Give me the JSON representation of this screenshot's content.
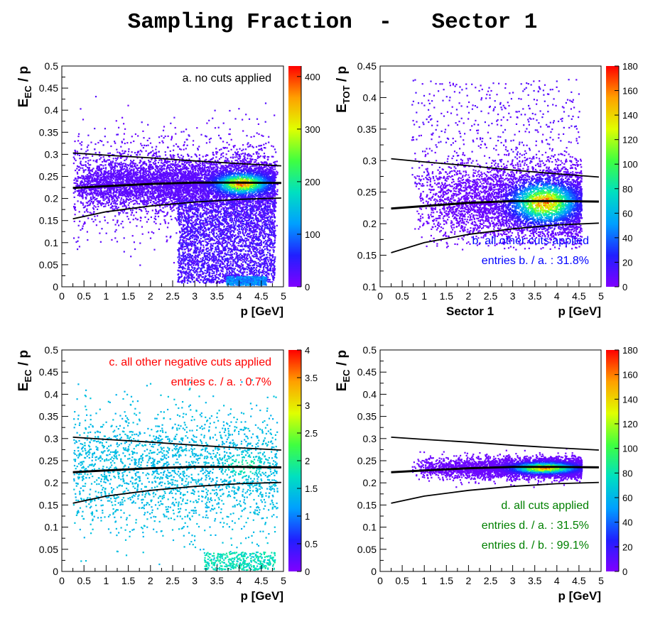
{
  "title": "Sampling Fraction  -   Sector 1",
  "palette_stops": [
    "#8000ff",
    "#2020ff",
    "#00a0ff",
    "#00e0c0",
    "#40ff40",
    "#e0ff00",
    "#ffa000",
    "#ff0000"
  ],
  "line_color": "#000000",
  "chart_data": [
    {
      "type": "heatmap",
      "panel": "a",
      "annotations": [
        {
          "text": "a. no cuts applied",
          "color": "#000000"
        }
      ],
      "ylabel_main": "E",
      "ylabel_sub": "EC",
      "ylabel_tail": " / p",
      "xlabel": "p  [GeV]",
      "xlabel_extra": "",
      "xlim": [
        0,
        5
      ],
      "ylim": [
        0,
        0.5
      ],
      "xticks": [
        "0",
        "0.5",
        "1",
        "1.5",
        "2",
        "2.5",
        "3",
        "3.5",
        "4",
        "4.5",
        "5"
      ],
      "yticks": [
        "0",
        "0.05",
        "0.1",
        "0.15",
        "0.2",
        "0.25",
        "0.3",
        "0.35",
        "0.4",
        "0.45",
        "0.5"
      ],
      "zlim": [
        0,
        420
      ],
      "zticks": [
        "0",
        "100",
        "200",
        "300",
        "400"
      ],
      "zticks_values": [
        0,
        100,
        200,
        300,
        400
      ],
      "peak": {
        "x": 4.05,
        "y": 0.235,
        "z": 420
      },
      "curves": {
        "upper": [
          [
            0.25,
            0.303
          ],
          [
            1,
            0.298
          ],
          [
            2,
            0.292
          ],
          [
            3,
            0.285
          ],
          [
            4,
            0.279
          ],
          [
            4.95,
            0.274
          ]
        ],
        "mean": [
          [
            0.25,
            0.224
          ],
          [
            1,
            0.228
          ],
          [
            2,
            0.233
          ],
          [
            3,
            0.236
          ],
          [
            4,
            0.236
          ],
          [
            4.95,
            0.235
          ]
        ],
        "lower": [
          [
            0.25,
            0.154
          ],
          [
            1,
            0.17
          ],
          [
            2,
            0.183
          ],
          [
            3,
            0.192
          ],
          [
            4,
            0.198
          ],
          [
            4.95,
            0.201
          ]
        ]
      }
    },
    {
      "type": "heatmap",
      "panel": "b",
      "annotations": [
        {
          "text": "b. all other cuts applied",
          "color": "#0000ff"
        },
        {
          "text": "entries b. / a. : 31.8%",
          "color": "#0000ff"
        }
      ],
      "ylabel_main": "E",
      "ylabel_sub": "TOT",
      "ylabel_tail": " / p",
      "xlabel": "p  [GeV]",
      "xlabel_extra": "Sector 1",
      "xlim": [
        0,
        5
      ],
      "ylim": [
        0.1,
        0.45
      ],
      "xticks": [
        "0",
        "0.5",
        "1",
        "1.5",
        "2",
        "2.5",
        "3",
        "3.5",
        "4",
        "4.5",
        "5"
      ],
      "yticks": [
        "0.1",
        "0.15",
        "0.2",
        "0.25",
        "0.3",
        "0.35",
        "0.4",
        "0.45"
      ],
      "zlim": [
        0,
        180
      ],
      "zticks": [
        "0",
        "20",
        "40",
        "60",
        "80",
        "100",
        "120",
        "140",
        "160",
        "180"
      ],
      "zticks_values": [
        0,
        20,
        40,
        60,
        80,
        100,
        120,
        140,
        160,
        180
      ],
      "peak": {
        "x": 3.7,
        "y": 0.235,
        "z": 180
      },
      "curves": {
        "upper": [
          [
            0.25,
            0.303
          ],
          [
            1,
            0.298
          ],
          [
            2,
            0.292
          ],
          [
            3,
            0.285
          ],
          [
            4,
            0.279
          ],
          [
            4.95,
            0.274
          ]
        ],
        "mean": [
          [
            0.25,
            0.224
          ],
          [
            1,
            0.228
          ],
          [
            2,
            0.233
          ],
          [
            3,
            0.236
          ],
          [
            4,
            0.236
          ],
          [
            4.95,
            0.235
          ]
        ],
        "lower": [
          [
            0.25,
            0.154
          ],
          [
            1,
            0.17
          ],
          [
            2,
            0.183
          ],
          [
            3,
            0.192
          ],
          [
            4,
            0.198
          ],
          [
            4.95,
            0.201
          ]
        ]
      }
    },
    {
      "type": "heatmap",
      "panel": "c",
      "annotations": [
        {
          "text": "c. all other negative cuts applied",
          "color": "#ff0000"
        },
        {
          "text": "entries c. / a. : 0.7%",
          "color": "#ff0000"
        }
      ],
      "ylabel_main": "E",
      "ylabel_sub": "EC",
      "ylabel_tail": " / p",
      "xlabel": "p  [GeV]",
      "xlabel_extra": "",
      "xlim": [
        0,
        5
      ],
      "ylim": [
        0,
        0.5
      ],
      "xticks": [
        "0",
        "0.5",
        "1",
        "1.5",
        "2",
        "2.5",
        "3",
        "3.5",
        "4",
        "4.5",
        "5"
      ],
      "yticks": [
        "0",
        "0.05",
        "0.1",
        "0.15",
        "0.2",
        "0.25",
        "0.3",
        "0.35",
        "0.4",
        "0.45",
        "0.5"
      ],
      "zlim": [
        0,
        4
      ],
      "zticks": [
        "0",
        "0.5",
        "1",
        "1.5",
        "2",
        "2.5",
        "3",
        "3.5",
        "4"
      ],
      "zticks_values": [
        0,
        0.5,
        1,
        1.5,
        2,
        2.5,
        3,
        3.5,
        4
      ],
      "peak": {
        "x": 4.1,
        "y": 0.24,
        "z": 2
      },
      "curves": {
        "upper": [
          [
            0.25,
            0.303
          ],
          [
            1,
            0.298
          ],
          [
            2,
            0.292
          ],
          [
            3,
            0.285
          ],
          [
            4,
            0.279
          ],
          [
            4.95,
            0.274
          ]
        ],
        "mean": [
          [
            0.25,
            0.224
          ],
          [
            1,
            0.228
          ],
          [
            2,
            0.233
          ],
          [
            3,
            0.236
          ],
          [
            4,
            0.236
          ],
          [
            4.95,
            0.235
          ]
        ],
        "lower": [
          [
            0.25,
            0.154
          ],
          [
            1,
            0.17
          ],
          [
            2,
            0.183
          ],
          [
            3,
            0.192
          ],
          [
            4,
            0.198
          ],
          [
            4.95,
            0.201
          ]
        ]
      }
    },
    {
      "type": "heatmap",
      "panel": "d",
      "annotations": [
        {
          "text": "d. all cuts applied",
          "color": "#008000"
        },
        {
          "text": "entries d. / a. : 31.5%",
          "color": "#008000"
        },
        {
          "text": "entries d. / b. : 99.1%",
          "color": "#008000"
        }
      ],
      "ylabel_main": "E",
      "ylabel_sub": "EC",
      "ylabel_tail": " / p",
      "xlabel": "p  [GeV]",
      "xlabel_extra": "",
      "xlim": [
        0,
        5
      ],
      "ylim": [
        0,
        0.5
      ],
      "xticks": [
        "0",
        "0.5",
        "1",
        "1.5",
        "2",
        "2.5",
        "3",
        "3.5",
        "4",
        "4.5",
        "5"
      ],
      "yticks": [
        "0",
        "0.05",
        "0.1",
        "0.15",
        "0.2",
        "0.25",
        "0.3",
        "0.35",
        "0.4",
        "0.45",
        "0.5"
      ],
      "zlim": [
        0,
        180
      ],
      "zticks": [
        "0",
        "20",
        "40",
        "60",
        "80",
        "100",
        "120",
        "140",
        "160",
        "180"
      ],
      "zticks_values": [
        0,
        20,
        40,
        60,
        80,
        100,
        120,
        140,
        160,
        180
      ],
      "peak": {
        "x": 3.7,
        "y": 0.235,
        "z": 180
      },
      "curves": {
        "upper": [
          [
            0.25,
            0.303
          ],
          [
            1,
            0.298
          ],
          [
            2,
            0.292
          ],
          [
            3,
            0.285
          ],
          [
            4,
            0.279
          ],
          [
            4.95,
            0.274
          ]
        ],
        "mean": [
          [
            0.25,
            0.224
          ],
          [
            1,
            0.228
          ],
          [
            2,
            0.233
          ],
          [
            3,
            0.236
          ],
          [
            4,
            0.236
          ],
          [
            4.95,
            0.235
          ]
        ],
        "lower": [
          [
            0.25,
            0.154
          ],
          [
            1,
            0.17
          ],
          [
            2,
            0.183
          ],
          [
            3,
            0.192
          ],
          [
            4,
            0.198
          ],
          [
            4.95,
            0.201
          ]
        ]
      }
    }
  ]
}
